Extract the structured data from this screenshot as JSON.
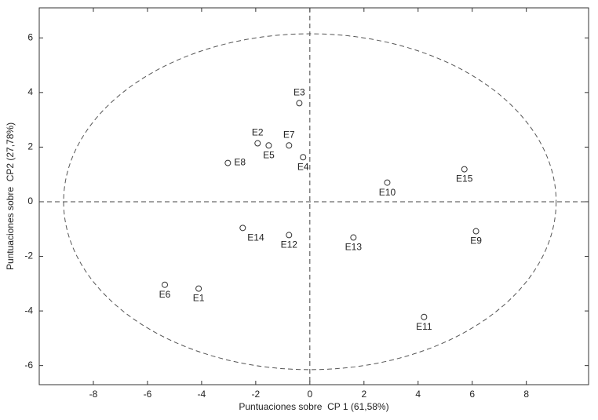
{
  "chart_data": {
    "type": "scatter",
    "x_label": "Puntuaciones sobre  CP 1 (61,58%)",
    "y_label": "Puntuaciones sobre  CP2 (27,78%)",
    "labels": [
      "E1",
      "E2",
      "E3",
      "E4",
      "E5",
      "E6",
      "E7",
      "E8",
      "E9",
      "E10",
      "E11",
      "E12",
      "E13",
      "E14",
      "E15"
    ],
    "x": [
      -4.11,
      -1.93,
      -0.39,
      -0.25,
      -1.52,
      -5.36,
      -0.77,
      -3.03,
      6.14,
      2.86,
      4.22,
      -0.77,
      1.61,
      -2.48,
      5.71
    ],
    "values": [
      -3.18,
      2.14,
      3.61,
      1.63,
      2.06,
      -3.04,
      2.06,
      1.42,
      -1.08,
      0.7,
      -4.22,
      -1.22,
      -1.31,
      -0.96,
      1.19
    ],
    "label_position": [
      "below",
      "above",
      "above",
      "below",
      "below",
      "below",
      "above",
      "right",
      "below",
      "below",
      "below",
      "below",
      "below",
      "below-right",
      "below"
    ],
    "ellipse": {
      "rx": 9.1,
      "ry": 6.15
    },
    "xlim": [
      -10,
      10.3
    ],
    "ylim": [
      -6.7,
      7.1
    ],
    "xticks": [
      -8,
      -6,
      -4,
      -2,
      0,
      2,
      4,
      6,
      8
    ],
    "yticks": [
      -6,
      -4,
      -2,
      0,
      2,
      4,
      6
    ]
  }
}
